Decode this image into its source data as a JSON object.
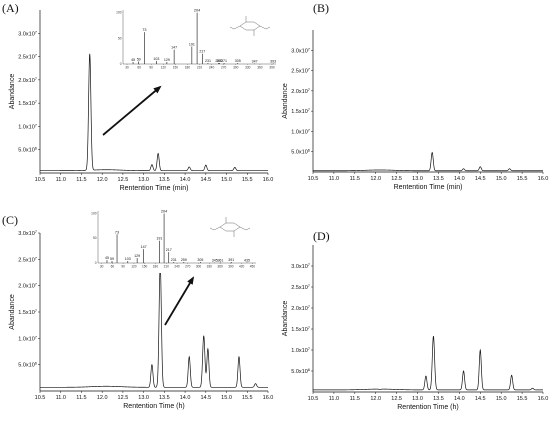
{
  "chart_data": [
    {
      "panel": "(A)",
      "type": "line",
      "xlabel": "Rentention Time (min)",
      "ylabel": "Abandance",
      "xlim": [
        10.5,
        16.0
      ],
      "ylim": [
        0,
        35000000
      ],
      "xticks": [
        "10.5",
        "11.0",
        "11.5",
        "12.0",
        "12.5",
        "13.0",
        "13.5",
        "14.0",
        "14.5",
        "15.0",
        "15.5",
        "16.0"
      ],
      "yticks": [
        "5.0x10^6",
        "1.0x10^7",
        "1.5x10^7",
        "2.0x10^7",
        "2.5x10^7",
        "3.0x10^7"
      ],
      "baseline": 500000,
      "peaks": [
        {
          "x": 11.7,
          "y": 25500000
        },
        {
          "x": 13.2,
          "y": 1800000
        },
        {
          "x": 13.35,
          "y": 4200000
        },
        {
          "x": 14.1,
          "y": 1300000
        },
        {
          "x": 14.5,
          "y": 1700000
        },
        {
          "x": 15.2,
          "y": 1200000
        }
      ],
      "inset": {
        "type": "bar",
        "xticks": [
          "30",
          "60",
          "90",
          "120",
          "150",
          "180",
          "210",
          "240",
          "270",
          "300",
          "330",
          "360",
          "390"
        ],
        "yticks": [
          "0",
          "50",
          "100"
        ],
        "bars": [
          {
            "x": 45,
            "y": 4,
            "label": "45"
          },
          {
            "x": 59,
            "y": 5,
            "label": "59"
          },
          {
            "x": 73,
            "y": 62,
            "label": "73"
          },
          {
            "x": 103,
            "y": 6,
            "label": "103"
          },
          {
            "x": 129,
            "y": 4,
            "label": "129"
          },
          {
            "x": 147,
            "y": 28,
            "label": "147"
          },
          {
            "x": 191,
            "y": 34,
            "label": "191"
          },
          {
            "x": 204,
            "y": 100,
            "label": "204"
          },
          {
            "x": 217,
            "y": 20,
            "label": "217"
          },
          {
            "x": 231,
            "y": 2,
            "label": "231"
          },
          {
            "x": 257,
            "y": 2,
            "label": "257"
          },
          {
            "x": 260,
            "y": 2,
            "label": "260"
          },
          {
            "x": 271,
            "y": 2,
            "label": "271"
          },
          {
            "x": 305,
            "y": 2,
            "label": "305"
          },
          {
            "x": 347,
            "y": 1,
            "label": "347"
          },
          {
            "x": 393,
            "y": 1,
            "label": "393"
          }
        ]
      }
    },
    {
      "panel": "(B)",
      "type": "line",
      "xlabel": "Rentention Time (min)",
      "ylabel": "Abandance",
      "xlim": [
        10.5,
        16.0
      ],
      "ylim": [
        0,
        35000000
      ],
      "xticks": [
        "10.5",
        "11.0",
        "11.5",
        "12.0",
        "12.5",
        "13.0",
        "13.5",
        "14.0",
        "14.5",
        "15.0",
        "15.5",
        "16.0"
      ],
      "yticks": [
        "5.0x10^6",
        "1.0x10^7",
        "1.5x10^7",
        "2.0x10^7",
        "2.5x10^7",
        "3.0x10^7"
      ],
      "baseline": 300000,
      "peaks": [
        {
          "x": 13.35,
          "y": 4800000
        },
        {
          "x": 14.1,
          "y": 800000
        },
        {
          "x": 14.5,
          "y": 1300000
        },
        {
          "x": 15.2,
          "y": 800000
        }
      ]
    },
    {
      "panel": "(C)",
      "type": "line",
      "xlabel": "Rentention Time (h)",
      "ylabel": "Abandance",
      "xlim": [
        10.5,
        16.0
      ],
      "ylim": [
        0,
        30000000
      ],
      "xticks": [
        "10.5",
        "11.0",
        "11.5",
        "12.0",
        "12.5",
        "13.0",
        "13.5",
        "14.0",
        "14.5",
        "15.0",
        "15.5",
        "16.0"
      ],
      "yticks": [
        "5.0x10^6",
        "1.0x10^7",
        "1.5x10^7",
        "2.0x10^7",
        "2.5x10^7",
        "3.0x10^7"
      ],
      "baseline": 700000,
      "peaks": [
        {
          "x": 13.2,
          "y": 5000000
        },
        {
          "x": 13.4,
          "y": 24000000
        },
        {
          "x": 14.1,
          "y": 6500000
        },
        {
          "x": 14.45,
          "y": 10500000
        },
        {
          "x": 14.55,
          "y": 8000000
        },
        {
          "x": 15.3,
          "y": 6500000
        },
        {
          "x": 15.7,
          "y": 1400000
        }
      ],
      "inset": {
        "type": "bar",
        "xticks": [
          "30",
          "60",
          "90",
          "120",
          "150",
          "180",
          "210",
          "240",
          "270",
          "300",
          "330",
          "360",
          "390",
          "420",
          "450"
        ],
        "yticks": [
          "0",
          "50",
          "100"
        ],
        "bars": [
          {
            "x": 45,
            "y": 6,
            "label": "45"
          },
          {
            "x": 59,
            "y": 4,
            "label": "59"
          },
          {
            "x": 73,
            "y": 58,
            "label": "73"
          },
          {
            "x": 103,
            "y": 4,
            "label": "103"
          },
          {
            "x": 129,
            "y": 10,
            "label": "129"
          },
          {
            "x": 147,
            "y": 28,
            "label": "147"
          },
          {
            "x": 191,
            "y": 45,
            "label": "191"
          },
          {
            "x": 204,
            "y": 100,
            "label": "204"
          },
          {
            "x": 217,
            "y": 22,
            "label": "217"
          },
          {
            "x": 231,
            "y": 2,
            "label": "231"
          },
          {
            "x": 259,
            "y": 2,
            "label": "259"
          },
          {
            "x": 305,
            "y": 2,
            "label": "305"
          },
          {
            "x": 345,
            "y": 1,
            "label": "345"
          },
          {
            "x": 361,
            "y": 1,
            "label": "361"
          },
          {
            "x": 391,
            "y": 2,
            "label": "391"
          },
          {
            "x": 435,
            "y": 1,
            "label": "435"
          }
        ]
      }
    },
    {
      "panel": "(D)",
      "type": "line",
      "xlabel": "Rentention Time (h)",
      "ylabel": "Abandance",
      "xlim": [
        10.5,
        16.0
      ],
      "ylim": [
        0,
        35000000
      ],
      "xticks": [
        "10.5",
        "11.0",
        "11.5",
        "12.0",
        "12.5",
        "13.0",
        "13.5",
        "14.0",
        "14.5",
        "15.0",
        "15.5",
        "16.0"
      ],
      "yticks": [
        "5.0x10^6",
        "1.0x10^7",
        "1.5x10^7",
        "2.0x10^7",
        "2.5x10^7",
        "3.0x10^7"
      ],
      "baseline": 500000,
      "peaks": [
        {
          "x": 12.1,
          "y": 400000
        },
        {
          "x": 13.2,
          "y": 3800000
        },
        {
          "x": 13.38,
          "y": 13300000
        },
        {
          "x": 14.1,
          "y": 5000000
        },
        {
          "x": 14.5,
          "y": 10000000
        },
        {
          "x": 15.25,
          "y": 4000000
        },
        {
          "x": 15.75,
          "y": 900000
        }
      ]
    }
  ]
}
